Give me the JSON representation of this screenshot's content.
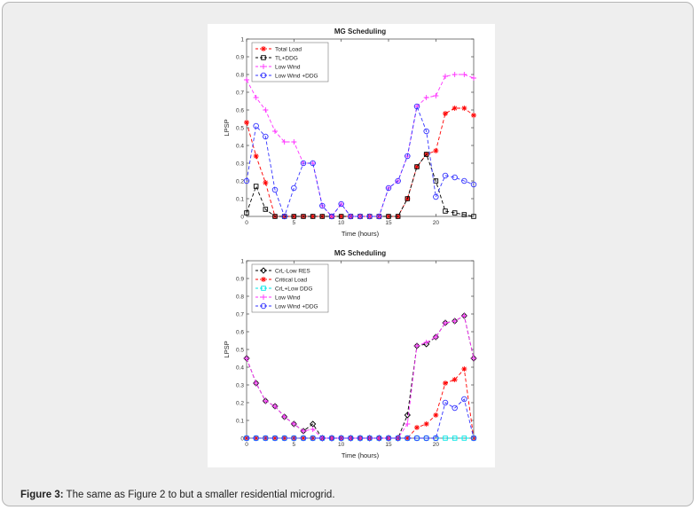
{
  "caption": {
    "label": "Figure 3:",
    "text": " The same as Figure 2 to but a smaller residential microgrid."
  },
  "colors": {
    "total_load": "#ff0000",
    "tl_ddg": "#000000",
    "low_wind": "#ff33ff",
    "low_wind_ddg": "#3333ff",
    "crl_low_res": "#000000",
    "critical_load": "#ff0000",
    "crl_low_ddg": "#00e5e5"
  },
  "chart_data": [
    {
      "type": "line",
      "title": "MG Scheduling",
      "xlabel": "Time (hours)",
      "ylabel": "LPSP",
      "xlim": [
        0,
        24
      ],
      "ylim": [
        0,
        1
      ],
      "xticks": [
        0,
        5,
        10,
        15,
        20
      ],
      "yticks": [
        0,
        0.1,
        0.2,
        0.3,
        0.4,
        0.5,
        0.6,
        0.7,
        0.8,
        0.9,
        1
      ],
      "legend_position": "top-left",
      "x": [
        0,
        1,
        2,
        3,
        4,
        5,
        6,
        7,
        8,
        9,
        10,
        11,
        12,
        13,
        14,
        15,
        16,
        17,
        18,
        19,
        20,
        21,
        22,
        23,
        24
      ],
      "series": [
        {
          "name": "Total Load",
          "color": "#ff0000",
          "marker": "star",
          "values": [
            0.53,
            0.34,
            0.19,
            0,
            0,
            0,
            0,
            0,
            0,
            0,
            0,
            0,
            0,
            0,
            0,
            0,
            0,
            0.1,
            0.28,
            0.35,
            0.37,
            0.58,
            0.61,
            0.61,
            0.57
          ]
        },
        {
          "name": "TL+DDG",
          "color": "#000000",
          "marker": "square",
          "values": [
            0.02,
            0.17,
            0.04,
            0,
            0,
            0,
            0,
            0,
            0,
            0,
            0,
            0,
            0,
            0,
            0,
            0,
            0,
            0.1,
            0.28,
            0.35,
            0.2,
            0.03,
            0.02,
            0.01,
            0
          ]
        },
        {
          "name": "Low Wind",
          "color": "#ff33ff",
          "marker": "plus",
          "values": [
            0.77,
            0.67,
            0.6,
            0.48,
            0.42,
            0.42,
            0.3,
            0.3,
            0.06,
            0,
            0.07,
            0,
            0,
            0,
            0,
            0.16,
            0.2,
            0.34,
            0.62,
            0.67,
            0.68,
            0.79,
            0.8,
            0.8,
            0.78
          ]
        },
        {
          "name": "Low Wind +DDG",
          "color": "#3333ff",
          "marker": "circle",
          "values": [
            0.2,
            0.51,
            0.45,
            0.15,
            0,
            0.16,
            0.3,
            0.3,
            0.06,
            0,
            0.07,
            0,
            0,
            0,
            0,
            0.16,
            0.2,
            0.34,
            0.62,
            0.48,
            0.11,
            0.23,
            0.22,
            0.2,
            0.18
          ]
        }
      ]
    },
    {
      "type": "line",
      "title": "MG Scheduling",
      "xlabel": "Time (hours)",
      "ylabel": "LPSP",
      "xlim": [
        0,
        24
      ],
      "ylim": [
        0,
        1
      ],
      "xticks": [
        0,
        5,
        10,
        15,
        20
      ],
      "yticks": [
        0,
        0.1,
        0.2,
        0.3,
        0.4,
        0.5,
        0.6,
        0.7,
        0.8,
        0.9,
        1
      ],
      "legend_position": "top-left",
      "x": [
        0,
        1,
        2,
        3,
        4,
        5,
        6,
        7,
        8,
        9,
        10,
        11,
        12,
        13,
        14,
        15,
        16,
        17,
        18,
        19,
        20,
        21,
        22,
        23,
        24
      ],
      "series": [
        {
          "name": "CrL-Low RES",
          "color": "#000000",
          "marker": "diamond",
          "values": [
            0.45,
            0.31,
            0.21,
            0.18,
            0.12,
            0.08,
            0.04,
            0.08,
            0,
            0,
            0,
            0,
            0,
            0,
            0,
            0,
            0,
            0.13,
            0.52,
            0.53,
            0.57,
            0.65,
            0.66,
            0.69,
            0.45
          ]
        },
        {
          "name": "Critical Load",
          "color": "#ff0000",
          "marker": "star",
          "values": [
            0,
            0,
            0,
            0,
            0,
            0,
            0,
            0,
            0,
            0,
            0,
            0,
            0,
            0,
            0,
            0,
            0,
            0,
            0.06,
            0.08,
            0.13,
            0.31,
            0.33,
            0.39,
            0
          ]
        },
        {
          "name": "CrL+Low DDG",
          "color": "#00e5e5",
          "marker": "square",
          "values": [
            0,
            0,
            0,
            0,
            0,
            0,
            0,
            0,
            0,
            0,
            0,
            0,
            0,
            0,
            0,
            0,
            0,
            0,
            0,
            0,
            0,
            0,
            0,
            0,
            0
          ]
        },
        {
          "name": "Low Wind",
          "color": "#ff33ff",
          "marker": "plus",
          "values": [
            0.45,
            0.31,
            0.21,
            0.18,
            0.12,
            0.08,
            0.04,
            0.05,
            0,
            0,
            0,
            0,
            0,
            0,
            0,
            0,
            0,
            0.08,
            0.52,
            0.54,
            0.57,
            0.65,
            0.66,
            0.69,
            0.45
          ]
        },
        {
          "name": "Low Wind +DDG",
          "color": "#3333ff",
          "marker": "circle",
          "values": [
            0,
            0,
            0,
            0,
            0,
            0,
            0,
            0,
            0,
            0,
            0,
            0,
            0,
            0,
            0,
            0,
            0,
            0,
            0,
            0,
            0,
            0.2,
            0.17,
            0.22,
            0
          ]
        }
      ]
    }
  ]
}
